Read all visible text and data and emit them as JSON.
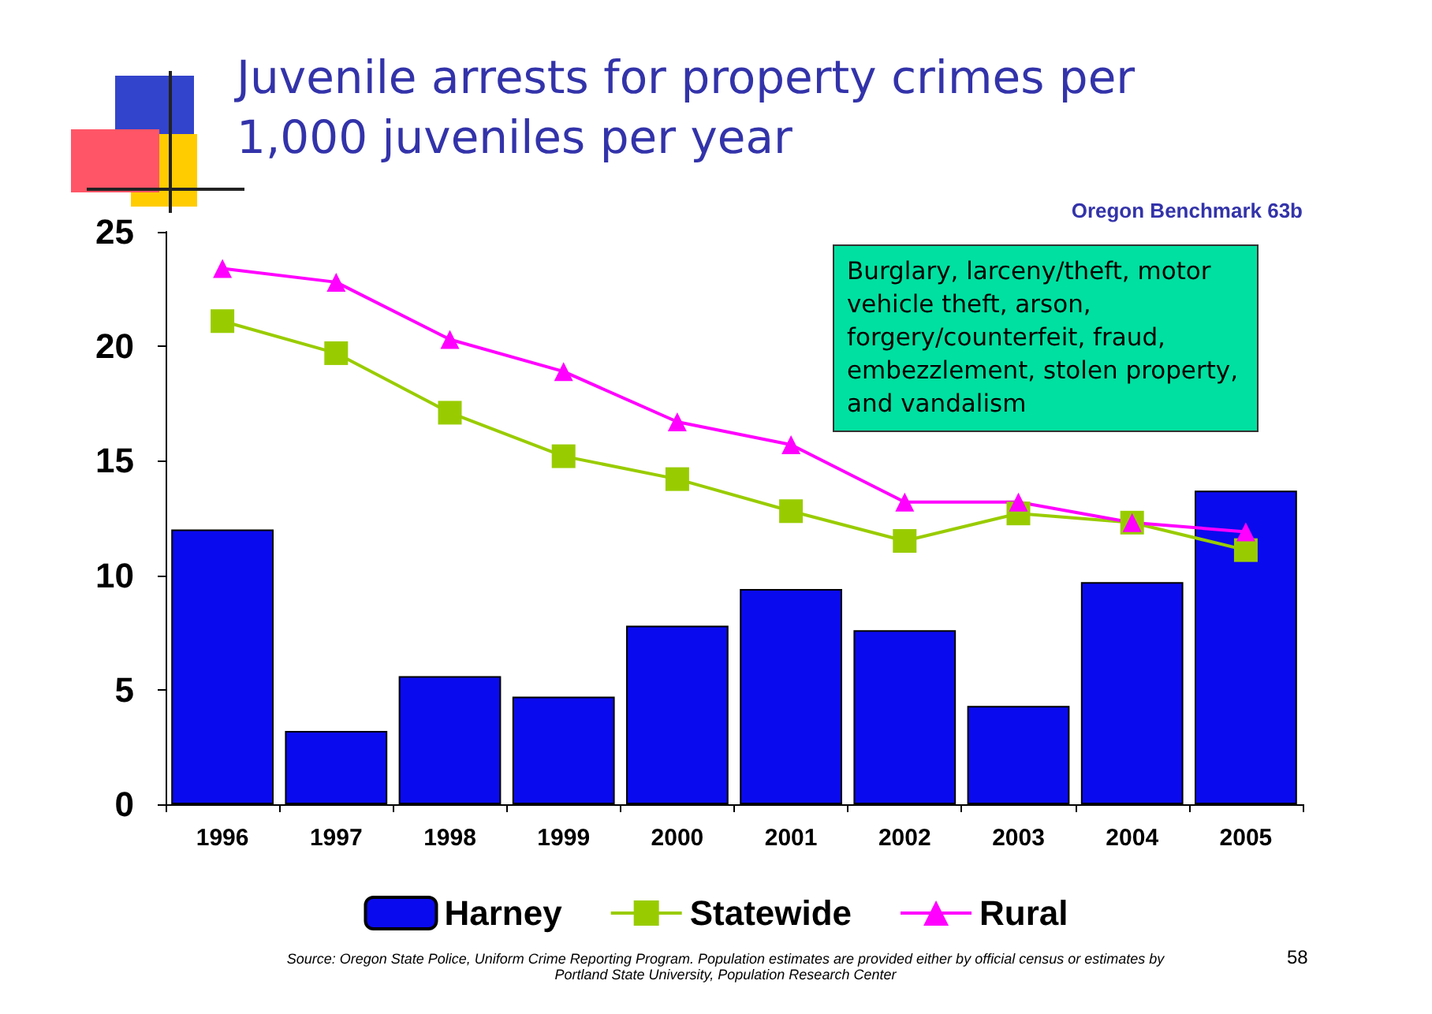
{
  "chart_data": {
    "type": "bar",
    "title": "Juvenile arrests for property crimes per 1,000 juveniles per year",
    "subtitle": "Oregon Benchmark 63b",
    "categories": [
      "1996",
      "1997",
      "1998",
      "1999",
      "2000",
      "2001",
      "2002",
      "2003",
      "2004",
      "2005"
    ],
    "series": [
      {
        "name": "Harney",
        "color": "#0a0aee",
        "values": [
          12,
          3.2,
          5.6,
          4.7,
          7.8,
          9.4,
          7.6,
          4.3,
          9.7,
          13.7
        ]
      },
      {
        "name": "Statewide",
        "type": "line",
        "color": "#99cc00",
        "marker": "square",
        "values": [
          21.1,
          19.7,
          17.1,
          15.2,
          14.2,
          12.8,
          11.5,
          12.7,
          12.3,
          11.1
        ]
      },
      {
        "name": "Rural",
        "type": "line",
        "color": "#ff00ff",
        "marker": "triangle",
        "values": [
          23.4,
          22.8,
          20.3,
          18.9,
          16.7,
          15.7,
          13.2,
          13.2,
          12.3,
          11.9
        ]
      }
    ],
    "ylim": [
      0,
      25
    ],
    "yticks": [
      0,
      5,
      10,
      15,
      20,
      25
    ],
    "grid": false,
    "legend": "bottom",
    "annotations": [
      "Burglary, larceny/theft, motor vehicle theft, arson, forgery/counterfeit, fraud, embezzlement, stolen property, and vandalism",
      "Source:  Oregon State Police, Uniform Crime Reporting Program. Population estimates are provided either by official census or estimates by Portland State University, Population Research Center",
      "58"
    ]
  }
}
